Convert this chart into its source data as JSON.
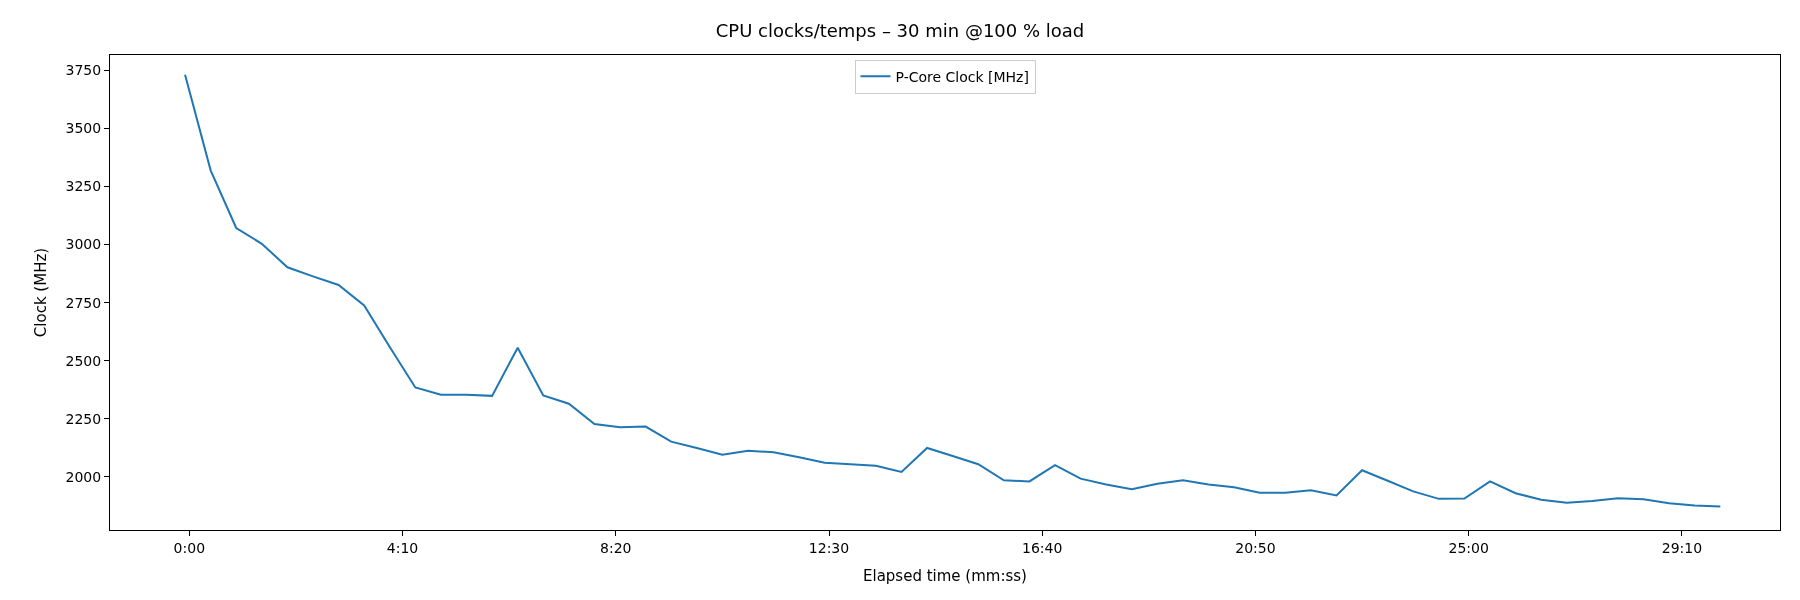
{
  "chart_data": {
    "type": "line",
    "title": "CPU clocks/temps – 30 min @100 % load",
    "xlabel": "Elapsed time (mm:ss)",
    "ylabel": "Clock (MHz)",
    "x": [
      -5,
      25,
      55,
      85,
      115,
      145,
      175,
      205,
      235,
      265,
      295,
      325,
      355,
      385,
      415,
      445,
      475,
      505,
      535,
      565,
      595,
      625,
      655,
      685,
      715,
      745,
      775,
      805,
      835,
      865,
      895,
      925,
      955,
      985,
      1015,
      1045,
      1075,
      1105,
      1135,
      1165,
      1195,
      1225,
      1255,
      1285,
      1315,
      1345,
      1375,
      1405,
      1435,
      1465,
      1495,
      1525,
      1555,
      1585,
      1615,
      1645,
      1675,
      1705,
      1735,
      1765,
      1795
    ],
    "series": [
      {
        "name": "P-Core Clock [MHz]",
        "color": "#1f77b4",
        "values": [
          3730,
          3319,
          3071,
          3003,
          2902,
          2863,
          2826,
          2738,
          2559,
          2385,
          2354,
          2354,
          2349,
          2556,
          2351,
          2315,
          2228,
          2214,
          2217,
          2152,
          2125,
          2096,
          2113,
          2106,
          2085,
          2061,
          2055,
          2048,
          2022,
          2125,
          2090,
          2055,
          1986,
          1981,
          2051,
          1993,
          1968,
          1947,
          1971,
          1986,
          1968,
          1956,
          1932,
          1932,
          1943,
          1921,
          2029,
          1984,
          1938,
          1906,
          1907,
          1981,
          1930,
          1902,
          1889,
          1897,
          1909,
          1904,
          1887,
          1877,
          1873
        ]
      }
    ],
    "xlim": [
      -93,
      1865
    ],
    "ylim": [
      1772,
      3815
    ],
    "xticks": [
      {
        "value": 0,
        "label": "0:00"
      },
      {
        "value": 250,
        "label": "4:10"
      },
      {
        "value": 500,
        "label": "8:20"
      },
      {
        "value": 750,
        "label": "12:30"
      },
      {
        "value": 1000,
        "label": "16:40"
      },
      {
        "value": 1250,
        "label": "20:50"
      },
      {
        "value": 1500,
        "label": "25:00"
      },
      {
        "value": 1750,
        "label": "29:10"
      }
    ],
    "yticks": [
      2000,
      2250,
      2500,
      2750,
      3000,
      3250,
      3500,
      3750
    ],
    "legend": "top",
    "marker": "none",
    "line_style": "solid"
  }
}
